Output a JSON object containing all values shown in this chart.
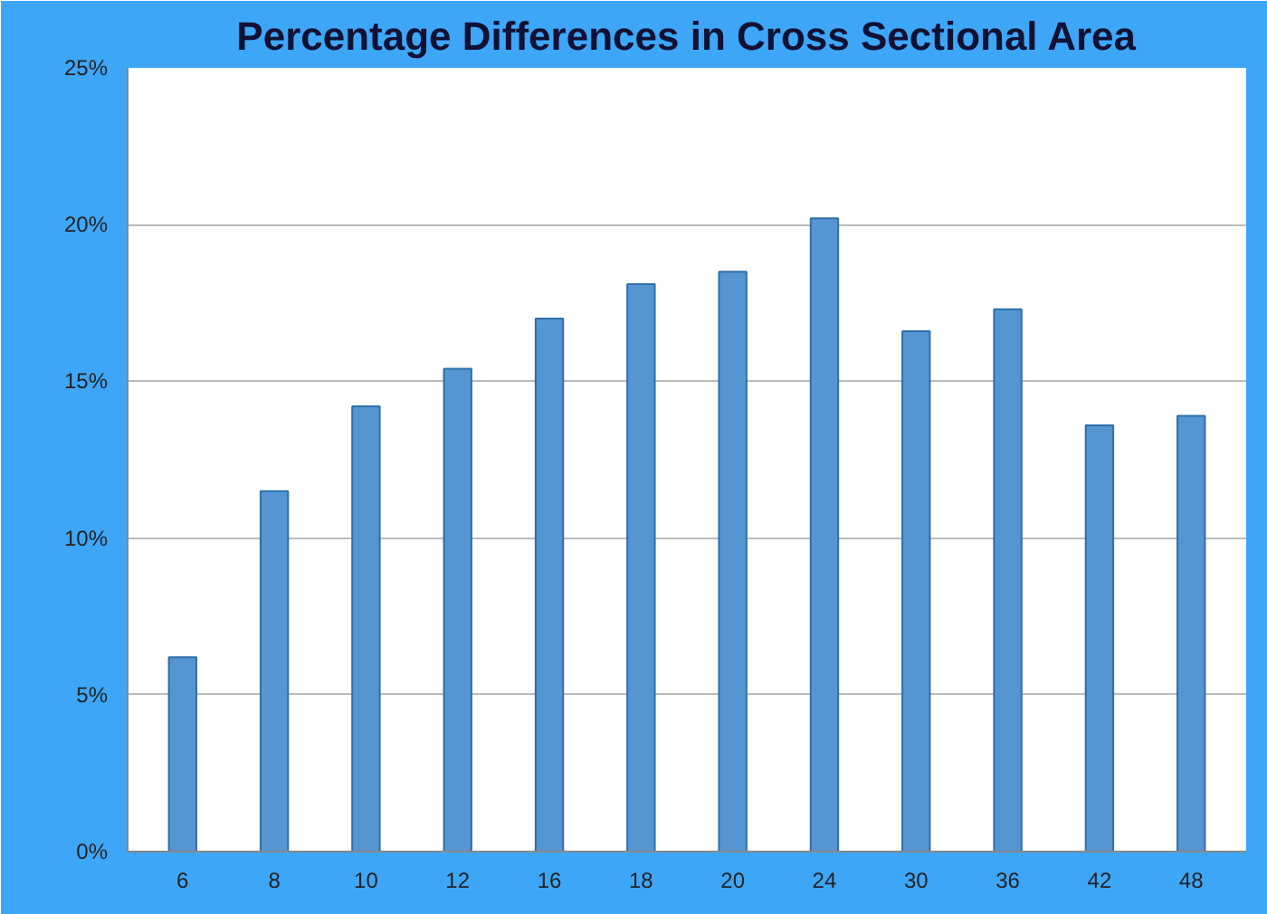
{
  "chart_data": {
    "type": "bar",
    "title": "Percentage Differences in Cross Sectional Area",
    "categories": [
      "6",
      "8",
      "10",
      "12",
      "16",
      "18",
      "20",
      "24",
      "30",
      "36",
      "42",
      "48"
    ],
    "values": [
      6.2,
      11.5,
      14.2,
      15.4,
      17.0,
      18.1,
      18.5,
      20.2,
      16.6,
      17.3,
      13.6,
      13.9
    ],
    "color": "#5596d2",
    "ylim": [
      0,
      25
    ],
    "yticks": [
      {
        "value": 0,
        "label": "0%"
      },
      {
        "value": 5,
        "label": "5%"
      },
      {
        "value": 10,
        "label": "10%"
      },
      {
        "value": 15,
        "label": "15%"
      },
      {
        "value": 20,
        "label": "20%"
      },
      {
        "value": 25,
        "label": "25%"
      }
    ],
    "grid": "y"
  }
}
